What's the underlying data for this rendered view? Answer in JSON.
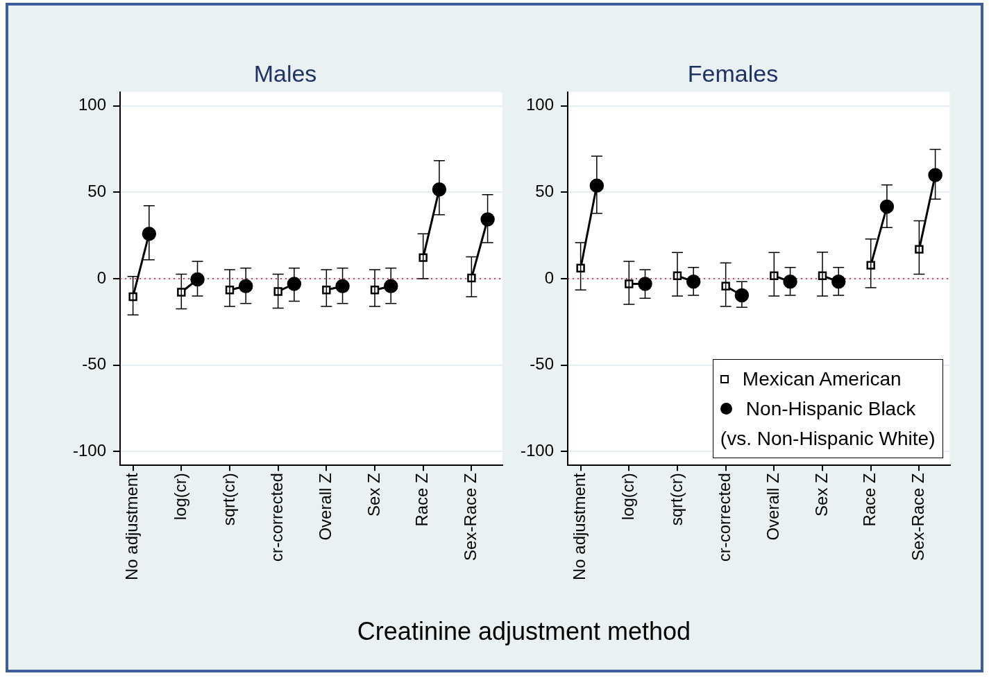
{
  "chart_data": [
    {
      "type": "scatter",
      "title": "Males",
      "xlabel": "Creatinine adjustment method",
      "categories": [
        "No adjustment",
        null,
        null,
        "log(cr)",
        null,
        null,
        "sqrt(cr)",
        null,
        null,
        "cr-corrected",
        null,
        null,
        "Overall Z",
        null,
        null,
        "Sex Z",
        null,
        null,
        "Race Z",
        null,
        null,
        "Sex-Race Z",
        null,
        null
      ],
      "ylim": [
        -108,
        108
      ],
      "yticks": [
        -100,
        -50,
        0,
        50,
        100
      ],
      "grid": "y",
      "legend": false,
      "ref_lines": [
        {
          "axis": "y",
          "value": 0,
          "color": "#c8102e",
          "line_style": "dotted"
        }
      ],
      "series": [
        {
          "type": "line",
          "color": "#000000",
          "marker": "none",
          "values": [
            -10.4,
            26,
            null,
            -7.8,
            -0.4,
            null,
            -6.5,
            -4.3,
            null,
            -7.4,
            -3,
            null,
            -6.5,
            -4.3,
            null,
            -6.5,
            -4.3,
            null,
            12.2,
            51.7,
            null,
            0.4,
            34.3,
            null
          ]
        },
        {
          "color": "#000000",
          "marker": "square",
          "values": [
            -10.4,
            null,
            null,
            -7.8,
            null,
            null,
            -6.5,
            null,
            null,
            -7.4,
            null,
            null,
            -6.5,
            null,
            null,
            -6.5,
            null,
            null,
            12.2,
            null,
            null,
            0.4,
            null,
            null
          ],
          "errors": [
            [
              -20.9,
              1.3
            ],
            null,
            null,
            [
              -17.4,
              2.6
            ],
            null,
            null,
            [
              -16,
              5.2
            ],
            null,
            null,
            [
              -17,
              2.6
            ],
            null,
            null,
            [
              -16,
              5.2
            ],
            null,
            null,
            [
              -16,
              5.2
            ],
            null,
            null,
            [
              0,
              26
            ],
            null,
            null,
            [
              -10.4,
              12.6
            ],
            null,
            null
          ]
        },
        {
          "color": "#000000",
          "marker": "circle",
          "values": [
            null,
            26,
            null,
            null,
            -0.4,
            null,
            null,
            -4.3,
            null,
            null,
            -3,
            null,
            null,
            -4.3,
            null,
            null,
            -4.3,
            null,
            null,
            51.7,
            null,
            null,
            34.3,
            null
          ],
          "errors": [
            null,
            [
              10.9,
              42.2
            ],
            null,
            null,
            [
              -10,
              10
            ],
            null,
            null,
            [
              -14.3,
              6.1
            ],
            null,
            null,
            [
              -13,
              6.1
            ],
            null,
            null,
            [
              -14.3,
              6.1
            ],
            null,
            null,
            [
              -14.3,
              6.1
            ],
            null,
            null,
            [
              37,
              68.3
            ],
            null,
            null,
            [
              20.9,
              48.7
            ],
            null
          ]
        }
      ]
    },
    {
      "type": "scatter",
      "title": "Females",
      "categories": [
        "No adjustment",
        null,
        null,
        "log(cr)",
        null,
        null,
        "sqrt(cr)",
        null,
        null,
        "cr-corrected",
        null,
        null,
        "Overall Z",
        null,
        null,
        "Sex Z",
        null,
        null,
        "Race Z",
        null,
        null,
        "Sex-Race Z",
        null,
        null
      ],
      "ylim": [
        -108,
        108
      ],
      "yticks": [
        -100,
        -50,
        0,
        50,
        100
      ],
      "grid": "y",
      "legend": "bottom right",
      "legend_title": "(vs. Non-Hispanic White)",
      "ref_lines": [
        {
          "axis": "y",
          "value": 0,
          "color": "#c8102e",
          "line_style": "dotted"
        }
      ],
      "series": [
        {
          "type": "line",
          "color": "#000000",
          "marker": "none",
          "values": [
            6.1,
            53.9,
            null,
            -3,
            -3,
            null,
            1.7,
            -1.7,
            null,
            -4.3,
            -9.6,
            null,
            1.7,
            -1.7,
            null,
            1.7,
            -1.7,
            null,
            7.8,
            41.7,
            null,
            17,
            60,
            null
          ]
        },
        {
          "name": "Mexican American",
          "color": "#000000",
          "marker": "square",
          "values": [
            6.1,
            null,
            null,
            -3,
            null,
            null,
            1.7,
            null,
            null,
            -4.3,
            null,
            null,
            1.7,
            null,
            null,
            1.7,
            null,
            null,
            7.8,
            null,
            null,
            17,
            null,
            null
          ],
          "errors": [
            [
              -6.5,
              20.9
            ],
            null,
            null,
            [
              -14.8,
              10
            ],
            null,
            null,
            [
              -10,
              15.2
            ],
            null,
            null,
            [
              -16,
              9.1
            ],
            null,
            null,
            [
              -10,
              15.2
            ],
            null,
            null,
            [
              -10,
              15.4
            ],
            null,
            null,
            [
              -5.2,
              23
            ],
            null,
            null,
            [
              2.6,
              33.5
            ],
            null,
            null
          ]
        },
        {
          "name": "Non-Hispanic Black",
          "color": "#000000",
          "marker": "circle",
          "values": [
            null,
            53.9,
            null,
            null,
            -3,
            null,
            null,
            -1.7,
            null,
            null,
            -9.6,
            null,
            null,
            -1.7,
            null,
            null,
            -1.7,
            null,
            null,
            41.7,
            null,
            null,
            60,
            null
          ],
          "errors": [
            null,
            [
              37.8,
              70.9
            ],
            null,
            null,
            [
              -11.3,
              5.2
            ],
            null,
            null,
            [
              -9.6,
              6.5
            ],
            null,
            null,
            [
              -16.5,
              -1.7
            ],
            null,
            null,
            [
              -9.6,
              6.5
            ],
            null,
            null,
            [
              -9.6,
              6.5
            ],
            null,
            null,
            [
              29.6,
              54.3
            ],
            null,
            null,
            [
              46,
              74.8
            ],
            null
          ]
        }
      ]
    }
  ]
}
